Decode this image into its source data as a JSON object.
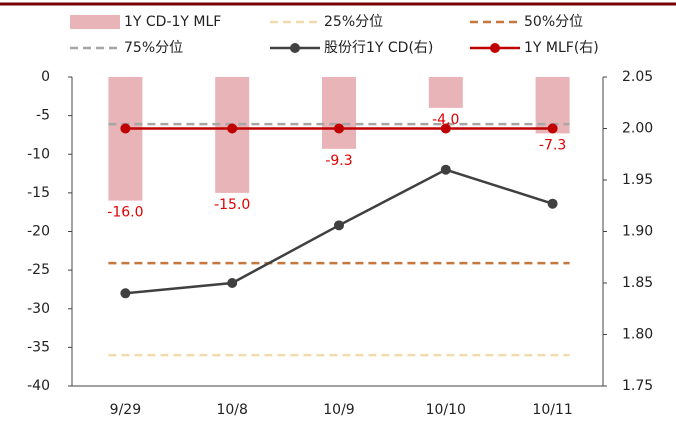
{
  "chart_data": {
    "type": "bar",
    "categories": [
      "9/29",
      "10/8",
      "10/9",
      "10/10",
      "10/11"
    ],
    "ylim": [
      -40,
      0
    ],
    "yticks": [
      0,
      -5,
      -10,
      -15,
      -20,
      -25,
      -30,
      -35,
      -40
    ],
    "y2lim": [
      1.75,
      2.05
    ],
    "y2ticks": [
      2.05,
      {
        "value": 2.0,
        "label": "2.00"
      },
      1.95,
      {
        "value": 1.9,
        "label": "1.90"
      },
      1.85,
      {
        "value": 1.8,
        "label": "1.80"
      },
      1.75
    ],
    "series": [
      {
        "name": "1Y CD-1Y MLF",
        "type": "bar",
        "color": "#e8b4b8",
        "values": [
          -16.0,
          -15.0,
          -9.3,
          -4.0,
          -7.3
        ],
        "value_labels": [
          "-16.0",
          "-15.0",
          "-9.3",
          "-4.0",
          "-7.3"
        ],
        "label_color": "#e00000"
      },
      {
        "name": "25%分位",
        "type": "dashed",
        "color": "#f2dcae",
        "values": [
          -36,
          -36,
          -36,
          -36,
          -36
        ]
      },
      {
        "name": "50%分位",
        "type": "dashed",
        "color": "#c5773e",
        "values": [
          -24.1,
          -24.1,
          -24.1,
          -24.1,
          -24.1
        ]
      },
      {
        "name": "75%分位",
        "type": "dashed",
        "color": "#a6a6a6",
        "values": [
          -6.1,
          -6.1,
          -6.1,
          -6.1,
          -6.1
        ]
      },
      {
        "name": "股份行1Y CD(右)",
        "type": "line",
        "axis": "y2",
        "color": "#404040",
        "values": [
          1.84,
          1.85,
          1.906,
          1.96,
          1.927
        ]
      },
      {
        "name": "1Y MLF(右)",
        "type": "line",
        "axis": "y2",
        "color": "#c00000",
        "values": [
          2.0,
          2.0,
          2.0,
          2.0,
          2.0
        ]
      }
    ]
  }
}
